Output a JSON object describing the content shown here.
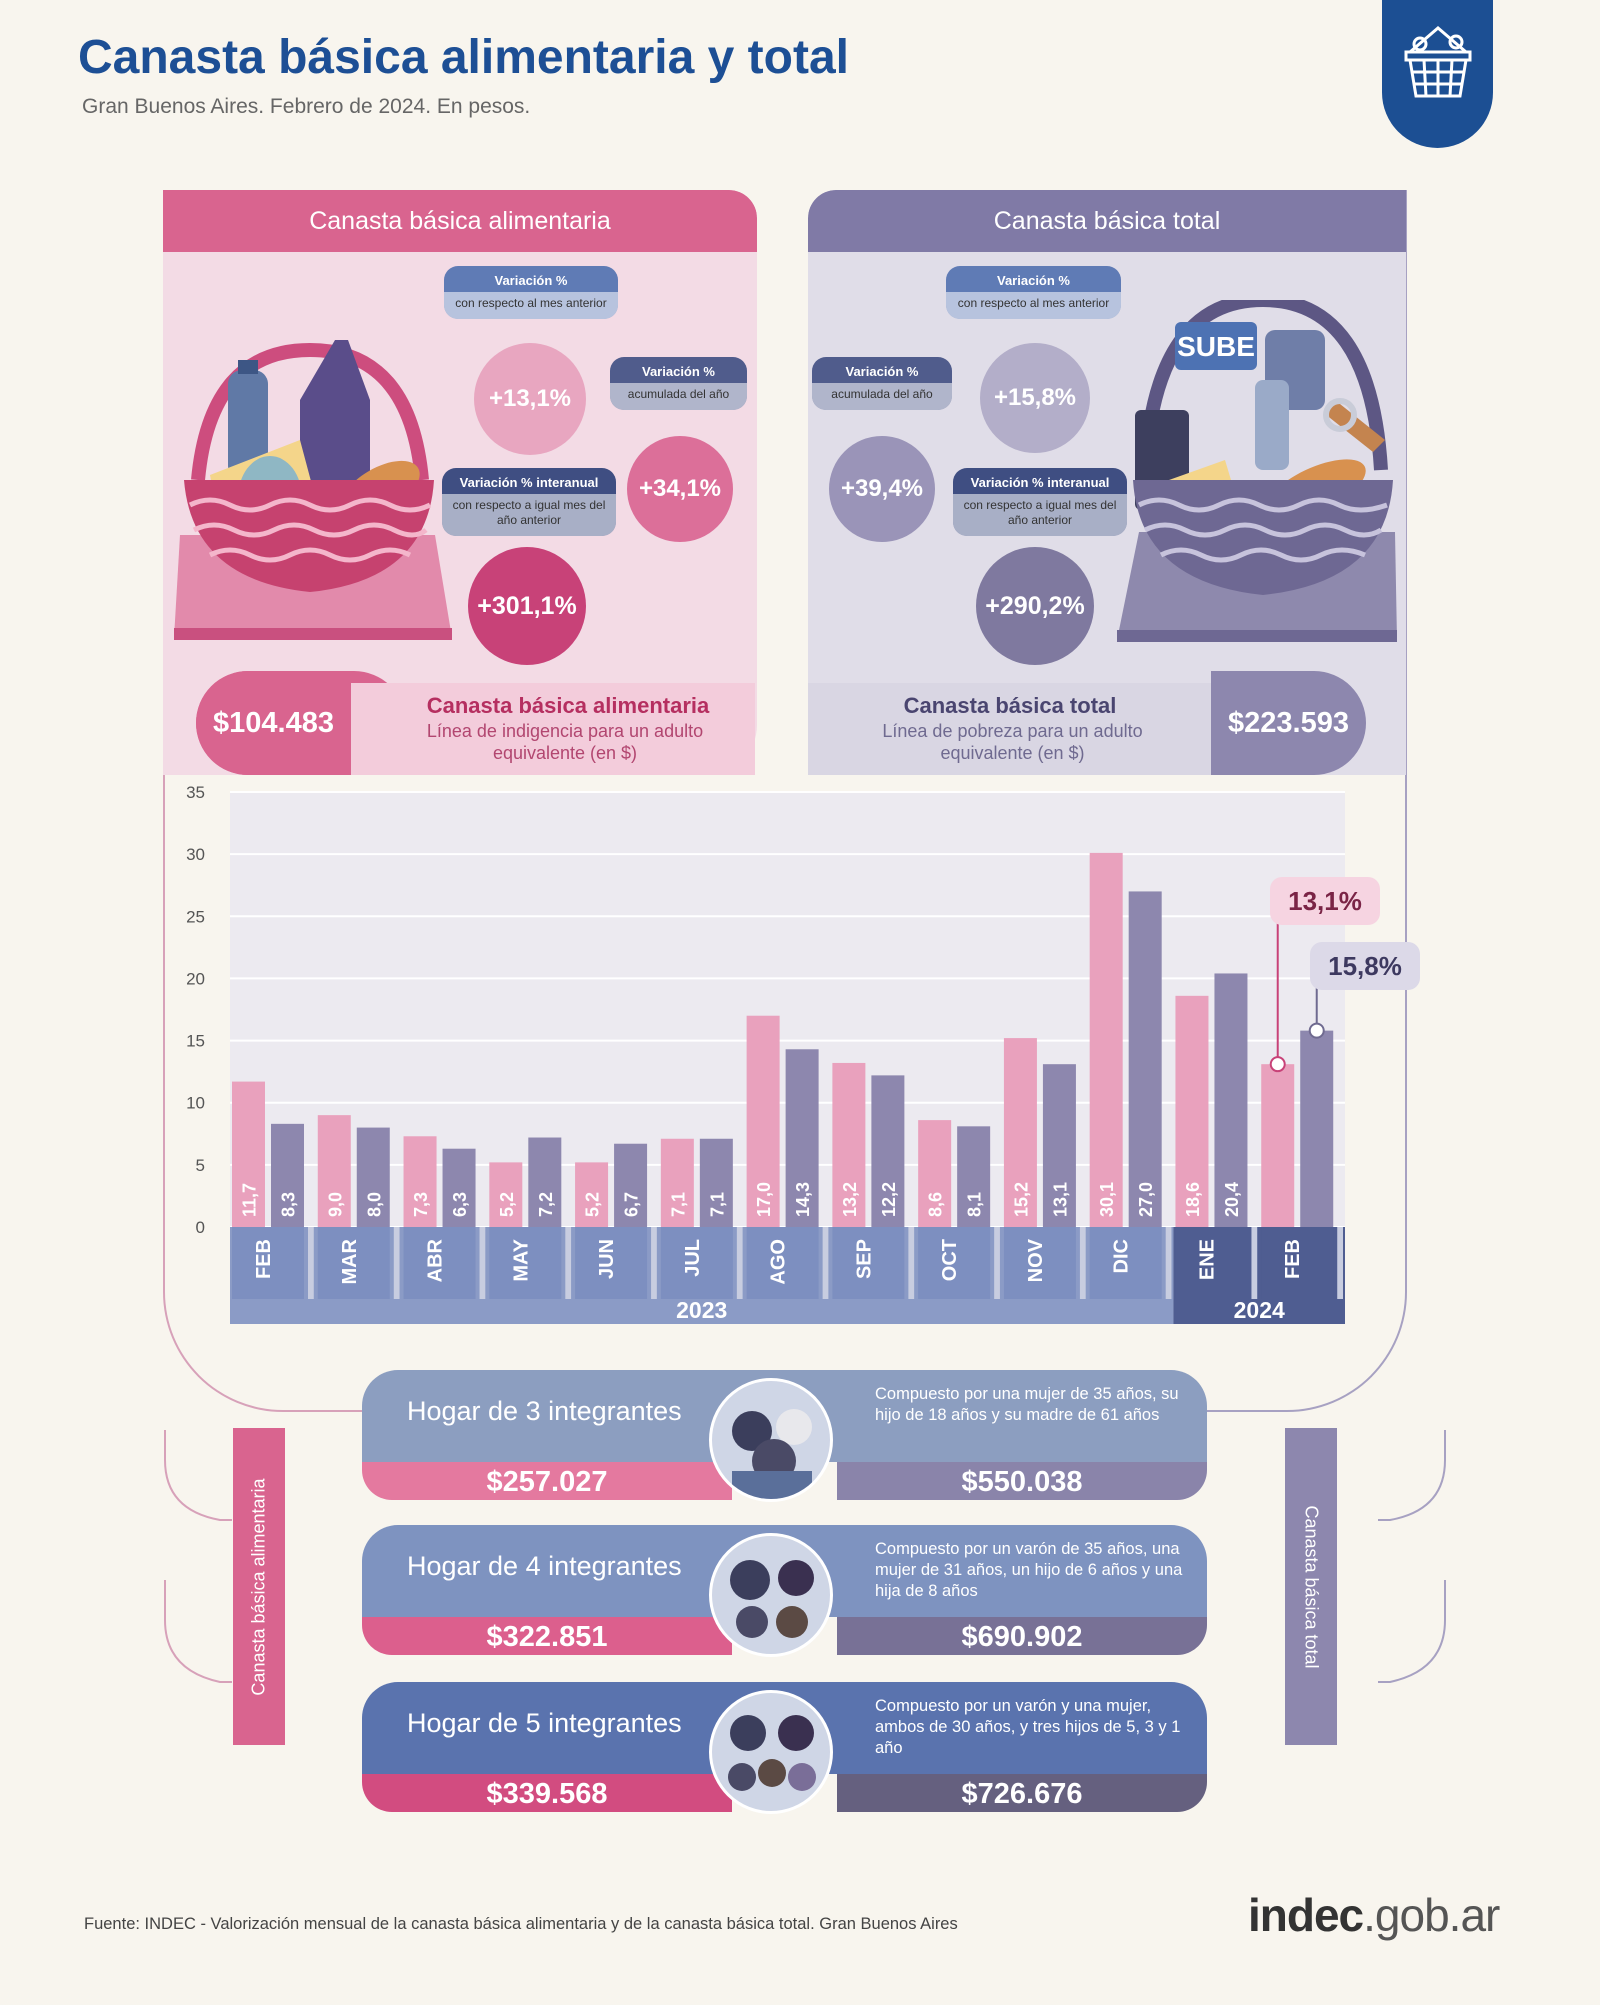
{
  "header": {
    "title": "Canasta básica alimentaria y total",
    "subtitle": "Gran Buenos Aires. Febrero de 2024. En pesos."
  },
  "cba": {
    "heading": "Canasta básica alimentaria",
    "var_mensual_t1": "Variación %",
    "var_mensual_t2": "con respecto al mes anterior",
    "var_mensual": "+13,1%",
    "var_acum_t1": "Variación %",
    "var_acum_t2": "acumulada del año",
    "var_acum": "+34,1%",
    "var_inter_t1": "Variación % interanual",
    "var_inter_t2": "con respecto a igual mes del año anterior",
    "var_inter": "+301,1%",
    "valor": "$104.483",
    "caption_title": "Canasta básica alimentaria",
    "caption_sub": "Línea de indigencia para un adulto equivalente (en $)"
  },
  "cbt": {
    "heading": "Canasta básica total",
    "var_mensual_t1": "Variación %",
    "var_mensual_t2": "con respecto al mes anterior",
    "var_mensual": "+15,8%",
    "var_acum_t1": "Variación %",
    "var_acum_t2": "acumulada del año",
    "var_acum": "+39,4%",
    "var_inter_t1": "Variación % interanual",
    "var_inter_t2": "con respecto a igual mes del año anterior",
    "var_inter": "+290,2%",
    "valor": "$223.593",
    "caption_title": "Canasta básica total",
    "caption_sub": "Línea de pobreza para un adulto equivalente (en $)",
    "sube_label": "SUBE"
  },
  "chart_data": {
    "type": "bar",
    "categories": [
      "FEB",
      "MAR",
      "ABR",
      "MAY",
      "JUN",
      "JUL",
      "AGO",
      "SEP",
      "OCT",
      "NOV",
      "DIC",
      "ENE",
      "FEB"
    ],
    "year_groups": [
      {
        "label": "2023",
        "count": 11
      },
      {
        "label": "2024",
        "count": 2
      }
    ],
    "series": [
      {
        "values": [
          11.7,
          9.0,
          7.3,
          5.2,
          5.2,
          7.1,
          17.0,
          13.2,
          8.6,
          15.2,
          30.1,
          18.6,
          13.1
        ],
        "labels": [
          "11,7",
          "9,0",
          "7,3",
          "5,2",
          "5,2",
          "7,1",
          "17,0",
          "13,2",
          "8,6",
          "15,2",
          "30,1",
          "18,6",
          ""
        ],
        "color": "#e9a1bd"
      },
      {
        "values": [
          8.3,
          8.0,
          6.3,
          7.2,
          6.7,
          7.1,
          14.3,
          12.2,
          8.1,
          13.1,
          27.0,
          20.4,
          15.8
        ],
        "labels": [
          "8,3",
          "8,0",
          "6,3",
          "7,2",
          "6,7",
          "7,1",
          "14,3",
          "12,2",
          "8,1",
          "13,1",
          "27,0",
          "20,4",
          ""
        ],
        "color": "#8d87ae"
      }
    ],
    "callouts": [
      "13,1%",
      "15,8%"
    ],
    "yticks": [
      "0",
      "5",
      "10",
      "15",
      "20",
      "25",
      "30",
      "35"
    ],
    "ylim": [
      0,
      35
    ],
    "grid": true
  },
  "hogares": [
    {
      "label": "Hogar de 3 integrantes",
      "desc": "Compuesto por una mujer de 35 años, su hijo de 18 años y su madre de 61 años",
      "cba": "$257.027",
      "cbt": "$550.038"
    },
    {
      "label": "Hogar de 4 integrantes",
      "desc": "Compuesto por un varón de 35 años, una mujer de 31 años, un hijo de 6 años y una hija de 8 años",
      "cba": "$322.851",
      "cbt": "$690.902"
    },
    {
      "label": "Hogar de 5 integrantes",
      "desc": "Compuesto por un varón y una mujer, ambos de 30 años, y tres hijos de 5, 3 y 1 año",
      "cba": "$339.568",
      "cbt": "$726.676"
    }
  ],
  "side": {
    "left": "Canasta básica alimentaria",
    "right": "Canasta básica total"
  },
  "footer": {
    "fuente": "Fuente: INDEC - Valorización mensual de la canasta básica alimentaria y de la canasta básica total. Gran Buenos Aires",
    "site_a": "indec",
    "site_b": ".gob.ar"
  },
  "colors": {
    "pink": "#d9648f",
    "purple": "#807aa6",
    "navy": "#1c4f93"
  }
}
